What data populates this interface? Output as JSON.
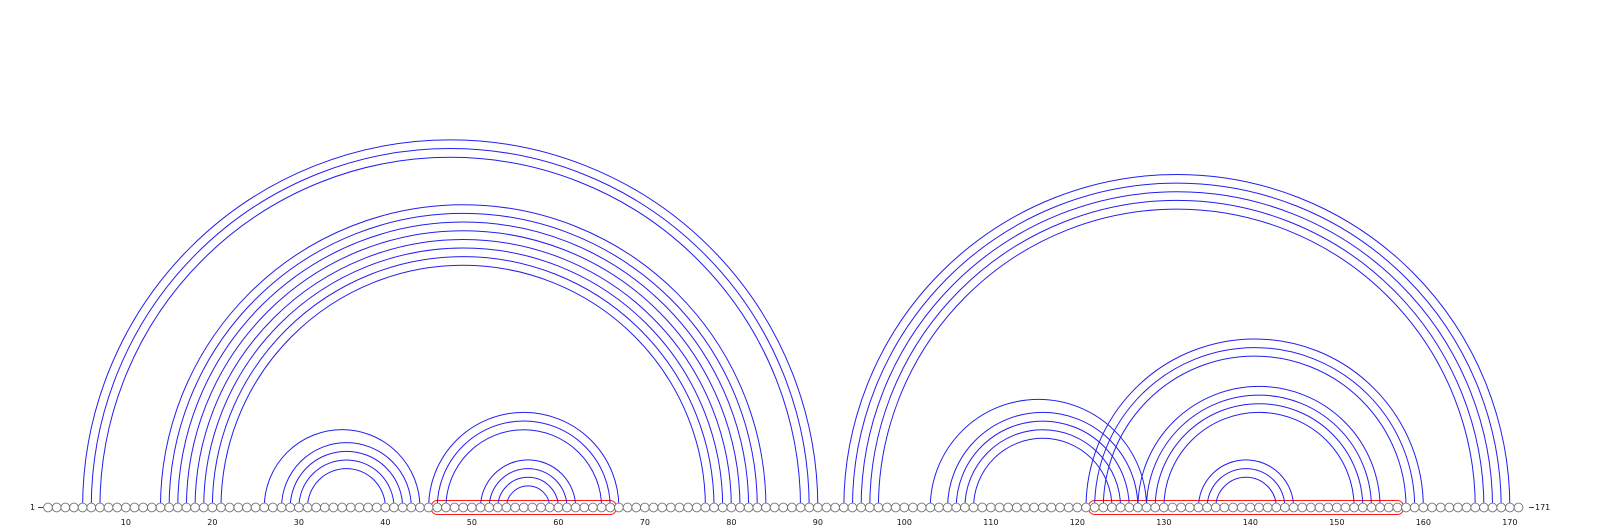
{
  "diagram": {
    "type": "rna-arc-diagram",
    "sequence_length": 171,
    "start_label": "1",
    "end_label": "171",
    "tick_labels": [
      "10",
      "20",
      "30",
      "40",
      "50",
      "60",
      "70",
      "80",
      "90",
      "100",
      "110",
      "120",
      "130",
      "140",
      "150",
      "160",
      "170"
    ],
    "colors": {
      "pair_arc": "#2020ee",
      "highlight": "#ff1a1a",
      "nucleotide_stroke": "#6f6f6f"
    },
    "highlight_regions": [
      {
        "start": 46,
        "end": 66
      },
      {
        "start": 122,
        "end": 157
      }
    ],
    "pairs": [
      [
        5,
        90
      ],
      [
        6,
        89
      ],
      [
        7,
        88
      ],
      [
        14,
        84
      ],
      [
        15,
        83
      ],
      [
        16,
        82
      ],
      [
        17,
        81
      ],
      [
        18,
        80
      ],
      [
        19,
        79
      ],
      [
        20,
        78
      ],
      [
        21,
        77
      ],
      [
        26,
        44
      ],
      [
        28,
        43
      ],
      [
        29,
        42
      ],
      [
        30,
        41
      ],
      [
        31,
        40
      ],
      [
        45,
        67
      ],
      [
        46,
        66
      ],
      [
        47,
        65
      ],
      [
        51,
        62
      ],
      [
        52,
        61
      ],
      [
        53,
        60
      ],
      [
        54,
        59
      ],
      [
        93,
        170
      ],
      [
        94,
        169
      ],
      [
        95,
        168
      ],
      [
        96,
        167
      ],
      [
        97,
        166
      ],
      [
        103,
        128
      ],
      [
        105,
        127
      ],
      [
        106,
        126
      ],
      [
        107,
        125
      ],
      [
        108,
        124
      ],
      [
        121,
        160
      ],
      [
        122,
        159
      ],
      [
        123,
        158
      ],
      [
        127,
        155
      ],
      [
        128,
        154
      ],
      [
        129,
        153
      ],
      [
        130,
        152
      ],
      [
        134,
        145
      ],
      [
        135,
        144
      ],
      [
        136,
        143
      ]
    ]
  }
}
